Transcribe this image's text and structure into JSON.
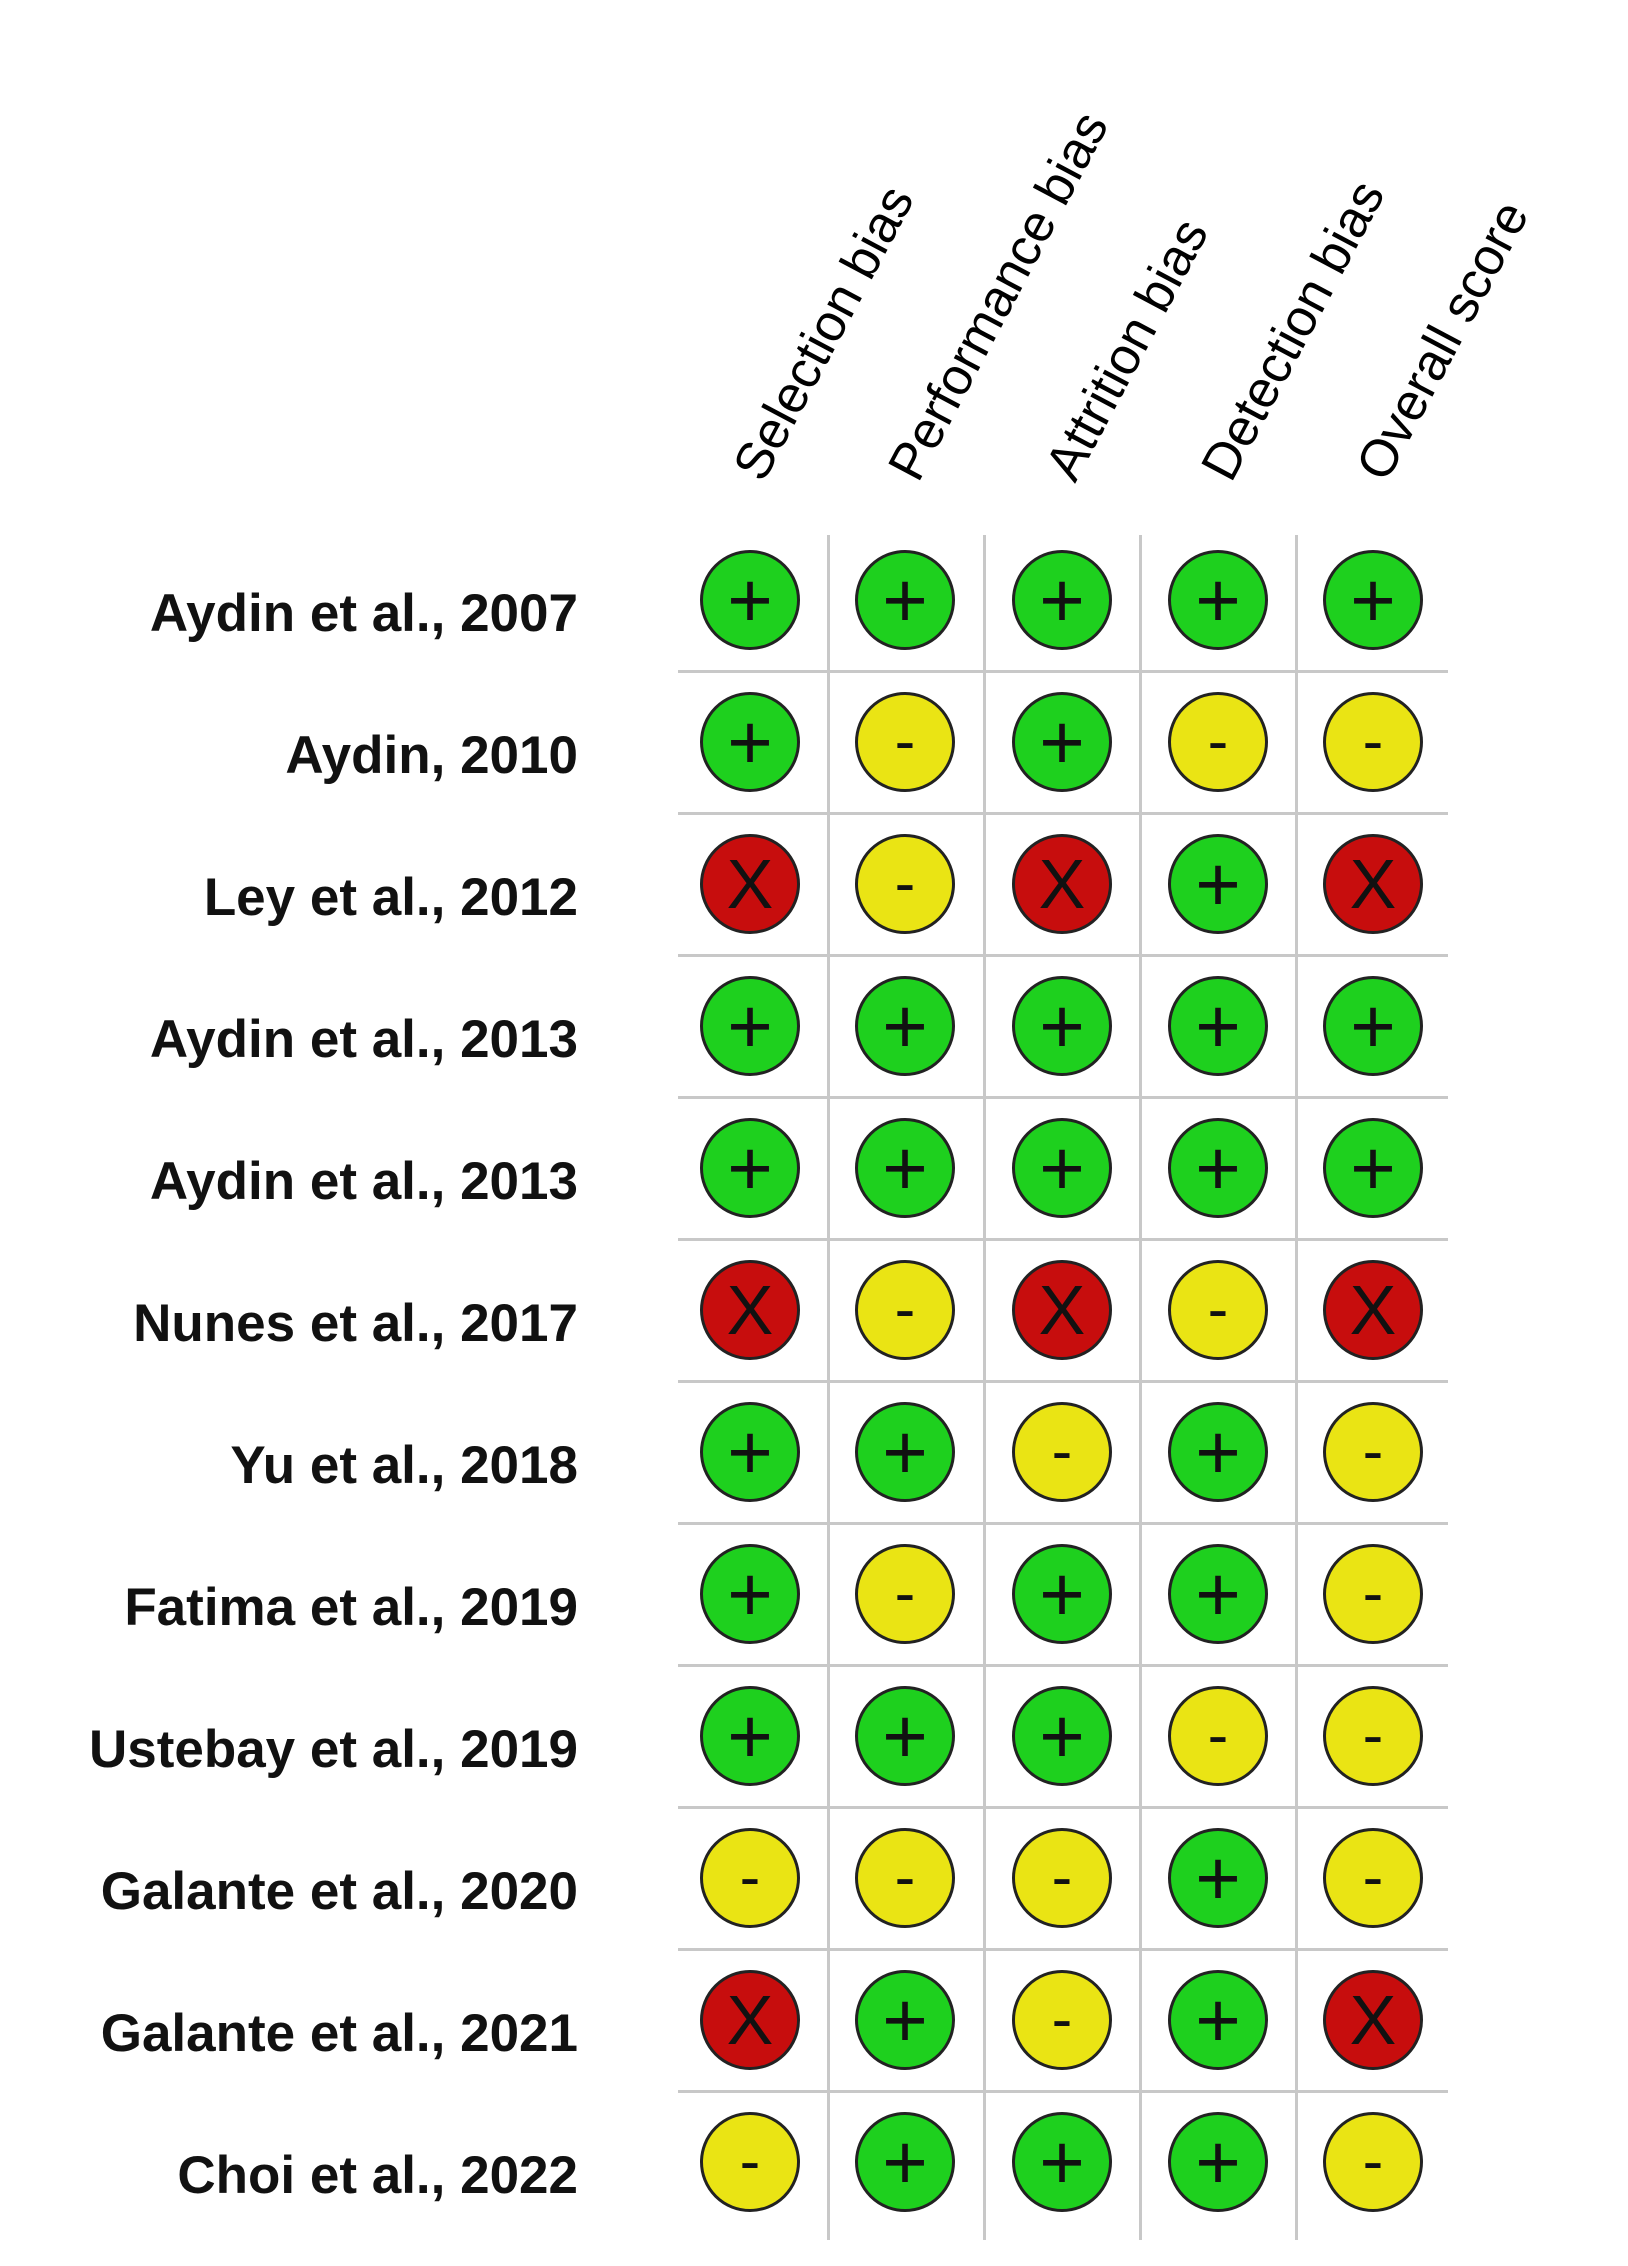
{
  "columns": [
    "Selection bias",
    "Performance bias",
    "Attrition bias",
    "Detection bias",
    "Overall score"
  ],
  "legend_symbols": {
    "low": "+",
    "some": "-",
    "high": "X"
  },
  "colors": {
    "low": "#1ed01e",
    "some": "#eae414",
    "high": "#c70d0d",
    "grid": "#c8c8c8"
  },
  "studies": [
    {
      "label": "Aydin et al., 2007",
      "ratings": [
        "low",
        "low",
        "low",
        "low",
        "low"
      ]
    },
    {
      "label": "Aydin, 2010",
      "ratings": [
        "low",
        "some",
        "low",
        "some",
        "some"
      ]
    },
    {
      "label": "Ley et al., 2012",
      "ratings": [
        "high",
        "some",
        "high",
        "low",
        "high"
      ]
    },
    {
      "label": "Aydin et al., 2013",
      "ratings": [
        "low",
        "low",
        "low",
        "low",
        "low"
      ]
    },
    {
      "label": "Aydin et al., 2013",
      "ratings": [
        "low",
        "low",
        "low",
        "low",
        "low"
      ]
    },
    {
      "label": "Nunes et al., 2017",
      "ratings": [
        "high",
        "some",
        "high",
        "some",
        "high"
      ]
    },
    {
      "label": "Yu et al., 2018",
      "ratings": [
        "low",
        "low",
        "some",
        "low",
        "some"
      ]
    },
    {
      "label": "Fatima et al., 2019",
      "ratings": [
        "low",
        "some",
        "low",
        "low",
        "some"
      ]
    },
    {
      "label": "Ustebay et al., 2019",
      "ratings": [
        "low",
        "low",
        "low",
        "some",
        "some"
      ]
    },
    {
      "label": "Galante et al., 2020",
      "ratings": [
        "some",
        "some",
        "some",
        "low",
        "some"
      ]
    },
    {
      "label": "Galante et al., 2021",
      "ratings": [
        "high",
        "low",
        "some",
        "low",
        "high"
      ]
    },
    {
      "label": "Choi et al., 2022",
      "ratings": [
        "some",
        "low",
        "low",
        "low",
        "some"
      ]
    }
  ]
}
